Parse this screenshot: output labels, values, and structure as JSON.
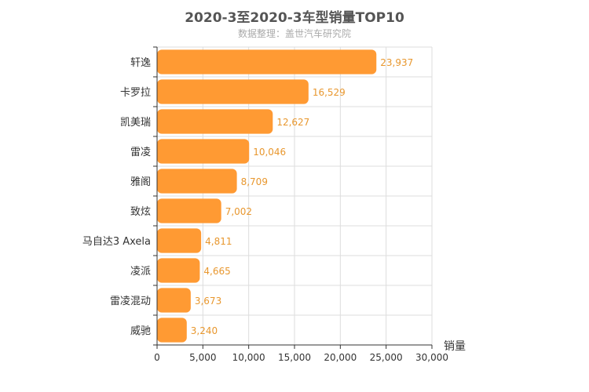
{
  "chart_data": {
    "type": "bar",
    "orientation": "horizontal",
    "title": "2020-3至2020-3车型销量TOP10",
    "subtitle": "数据整理：盖世汽车研究院",
    "xlabel": "销量",
    "ylabel": "",
    "xlim": [
      0,
      30000
    ],
    "ticks": [
      0,
      5000,
      10000,
      15000,
      20000,
      25000,
      30000
    ],
    "tick_labels": [
      "0",
      "5,000",
      "10,000",
      "15,000",
      "20,000",
      "25,000",
      "30,000"
    ],
    "categories": [
      "轩逸",
      "卡罗拉",
      "凯美瑞",
      "雷凌",
      "雅阁",
      "致炫",
      "马自达3 Axela",
      "凌派",
      "雷凌混动",
      "威驰"
    ],
    "values": [
      23937,
      16529,
      12627,
      10046,
      8709,
      7002,
      4811,
      4665,
      3673,
      3240
    ],
    "value_labels": [
      "23,937",
      "16,529",
      "12,627",
      "10,046",
      "8,709",
      "7,002",
      "4,811",
      "4,665",
      "3,673",
      "3,240"
    ],
    "grid": true,
    "bar_color": "#ff9a33"
  }
}
